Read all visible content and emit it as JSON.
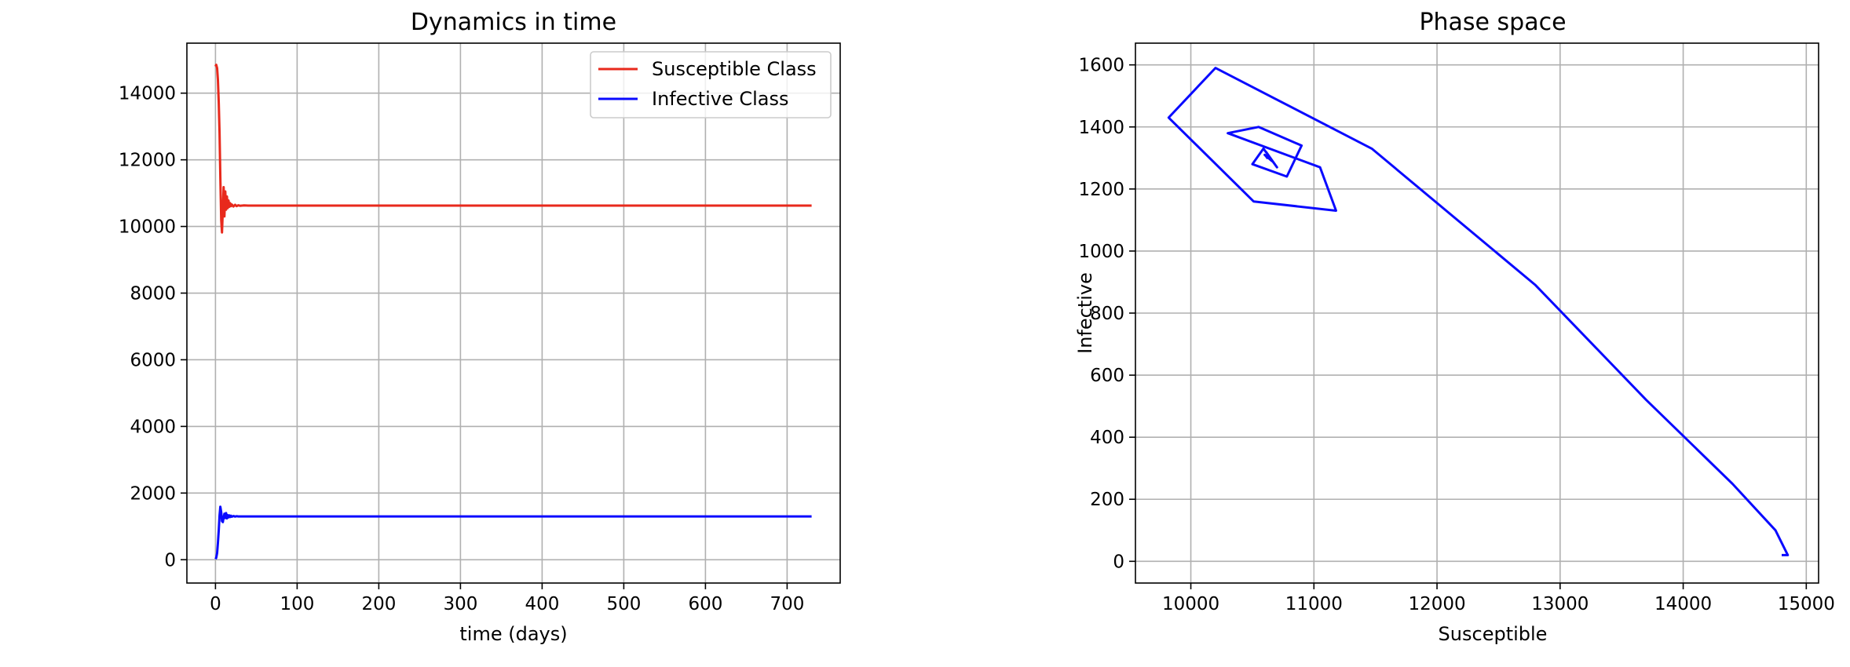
{
  "chart_data": [
    {
      "type": "line",
      "title": "Dynamics in time",
      "xlabel": "time (days)",
      "ylabel": "",
      "xlim": [
        -35,
        765
      ],
      "ylim": [
        -700,
        15500
      ],
      "xticks": [
        0,
        100,
        200,
        300,
        400,
        500,
        600,
        700
      ],
      "yticks": [
        0,
        2000,
        4000,
        6000,
        8000,
        10000,
        12000,
        14000
      ],
      "grid": true,
      "legend": "top-right",
      "series": [
        {
          "name": "Susceptible Class",
          "color": "#e8291c",
          "x": [
            0,
            1,
            2,
            3,
            4,
            5,
            6,
            7,
            8,
            9,
            10,
            11,
            12,
            13,
            14,
            15,
            16,
            17,
            18,
            19,
            20,
            22,
            24,
            26,
            28,
            30,
            35,
            40,
            60,
            100,
            200,
            400,
            600,
            730
          ],
          "y": [
            14800,
            14850,
            14750,
            14400,
            13700,
            12800,
            11470,
            10200,
            9820,
            10510,
            11180,
            10300,
            11050,
            10500,
            10900,
            10550,
            10780,
            10590,
            10700,
            10610,
            10660,
            10600,
            10650,
            10610,
            10635,
            10620,
            10630,
            10625,
            10625,
            10625,
            10625,
            10625,
            10625,
            10625
          ]
        },
        {
          "name": "Infective Class",
          "color": "#0a0aff",
          "x": [
            0,
            1,
            2,
            3,
            4,
            5,
            6,
            7,
            8,
            9,
            10,
            11,
            12,
            13,
            14,
            15,
            16,
            17,
            18,
            19,
            20,
            22,
            24,
            26,
            28,
            30,
            35,
            40,
            60,
            100,
            200,
            400,
            600,
            730
          ],
          "y": [
            20,
            60,
            200,
            500,
            890,
            1330,
            1590,
            1430,
            1160,
            1130,
            1270,
            1380,
            1250,
            1400,
            1240,
            1340,
            1270,
            1330,
            1280,
            1320,
            1290,
            1310,
            1295,
            1305,
            1300,
            1300,
            1300,
            1300,
            1300,
            1300,
            1300,
            1300,
            1300,
            1300
          ]
        }
      ]
    },
    {
      "type": "line",
      "title": "Phase space",
      "xlabel": "Susceptible",
      "ylabel": "Infective",
      "xlim": [
        9550,
        15100
      ],
      "ylim": [
        -70,
        1670
      ],
      "xticks": [
        10000,
        11000,
        12000,
        13000,
        14000,
        15000
      ],
      "yticks": [
        0,
        200,
        400,
        600,
        800,
        1000,
        1200,
        1400,
        1600
      ],
      "grid": true,
      "series": [
        {
          "color": "#0a0aff",
          "x": [
            14800,
            14850,
            14750,
            14400,
            13700,
            12800,
            11470,
            10200,
            9820,
            10510,
            11180,
            11050,
            10300,
            10550,
            10900,
            10780,
            10500,
            10590,
            10700,
            10610,
            10660,
            10600,
            10650,
            10610,
            10635,
            10620,
            10630,
            10625
          ],
          "y": [
            20,
            20,
            100,
            250,
            520,
            890,
            1330,
            1590,
            1430,
            1160,
            1130,
            1270,
            1380,
            1400,
            1340,
            1240,
            1280,
            1330,
            1270,
            1320,
            1290,
            1310,
            1295,
            1305,
            1300,
            1300,
            1300,
            1300
          ]
        }
      ]
    }
  ]
}
